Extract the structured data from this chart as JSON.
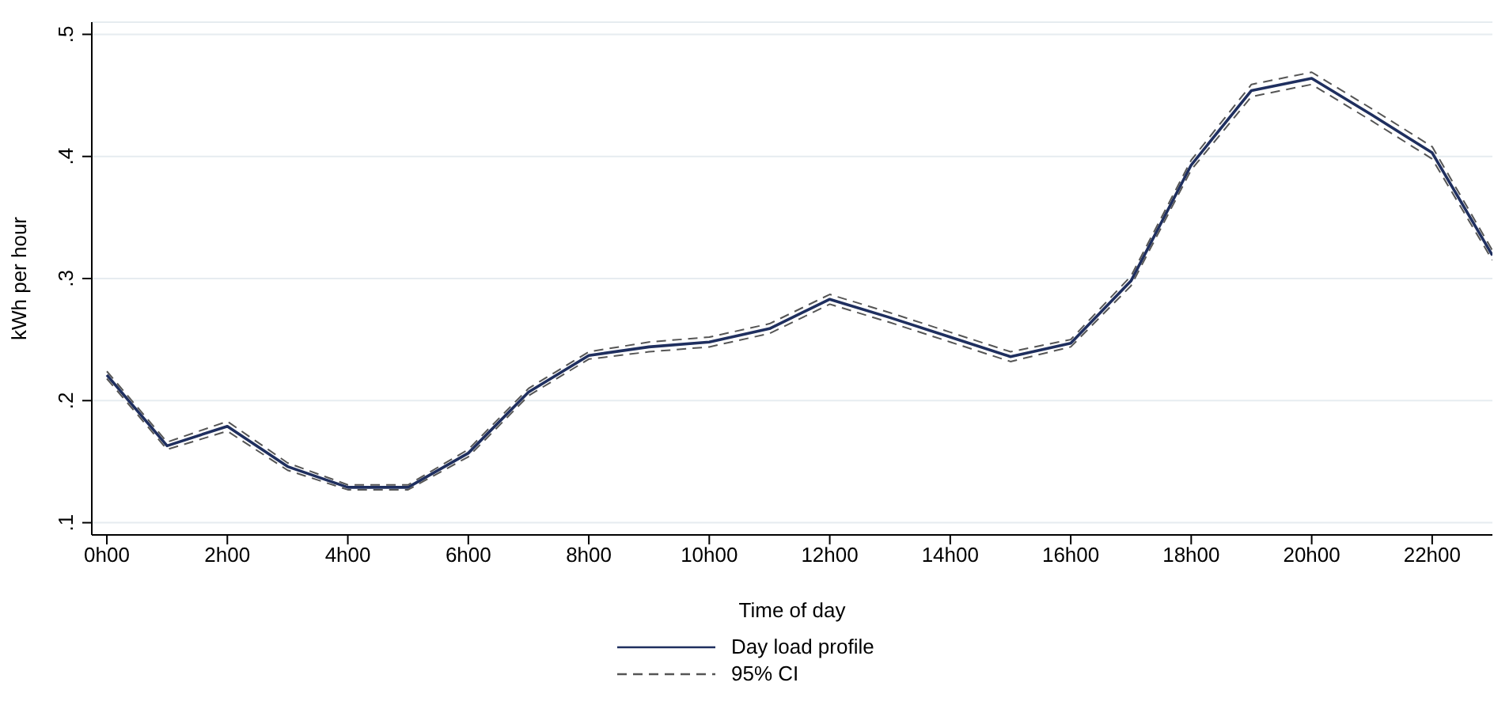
{
  "chart_data": {
    "type": "line",
    "xlabel": "Time of day",
    "ylabel": "kWh per hour",
    "categories": [
      "0h00",
      null,
      "2h00",
      null,
      "4h00",
      null,
      "6h00",
      null,
      "8h00",
      null,
      "10h00",
      null,
      "12h00",
      null,
      "14h00",
      null,
      "16h00",
      null,
      "18h00",
      null,
      "20h00",
      null,
      "22h00",
      null
    ],
    "series": [
      {
        "name": "Day load profile",
        "color": "#1f2f5f",
        "line_style": "solid",
        "values": [
          0.221,
          0.163,
          0.179,
          0.146,
          0.129,
          0.129,
          0.157,
          0.207,
          0.237,
          0.244,
          0.248,
          0.259,
          0.283,
          0.268,
          0.252,
          0.236,
          0.247,
          0.298,
          0.393,
          0.454,
          0.464,
          0.434,
          0.403,
          0.319
        ]
      },
      {
        "name": "95% CI",
        "color": "#555555",
        "line_style": "dashed",
        "values": [
          0.224,
          0.166,
          0.183,
          0.149,
          0.131,
          0.131,
          0.16,
          0.21,
          0.24,
          0.248,
          0.252,
          0.263,
          0.287,
          0.272,
          0.256,
          0.24,
          0.25,
          0.302,
          0.397,
          0.459,
          0.469,
          0.439,
          0.408,
          0.323
        ]
      },
      {
        "color": "#555555",
        "line_style": "dashed",
        "values": [
          0.218,
          0.16,
          0.175,
          0.143,
          0.127,
          0.127,
          0.154,
          0.204,
          0.234,
          0.24,
          0.244,
          0.255,
          0.279,
          0.264,
          0.248,
          0.232,
          0.244,
          0.294,
          0.389,
          0.449,
          0.459,
          0.429,
          0.398,
          0.315
        ]
      }
    ],
    "ylim": [
      0.09,
      0.51
    ],
    "yticks": [
      {
        "value": 0.1,
        "label": ".1"
      },
      {
        "value": 0.2,
        "label": ".2"
      },
      {
        "value": 0.3,
        "label": ".3"
      },
      {
        "value": 0.4,
        "label": ".4"
      },
      {
        "value": 0.5,
        "label": ".5"
      }
    ],
    "grid": "y",
    "legend": "bottom",
    "marker": "none"
  }
}
